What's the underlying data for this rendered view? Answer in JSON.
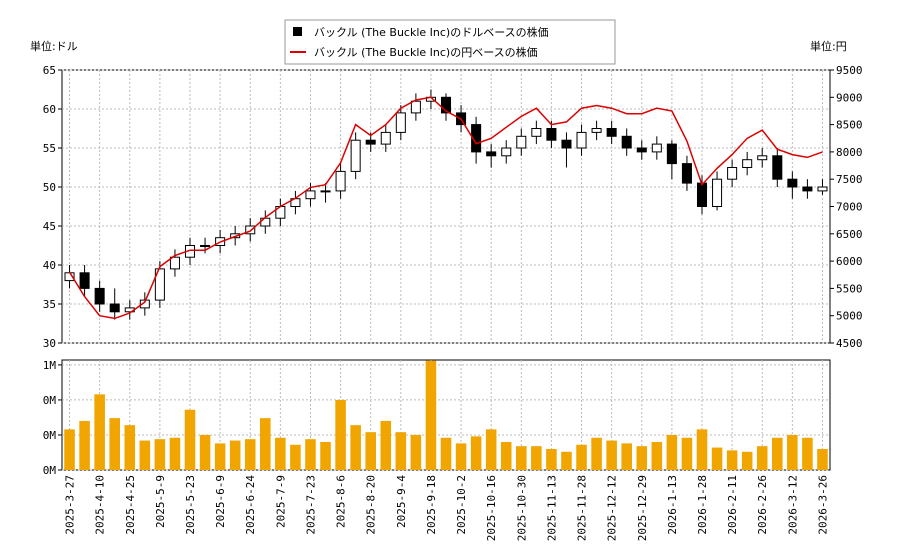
{
  "chart_data": [
    {
      "type": "candlestick",
      "legend_position": "upper center",
      "y_unit_label": "単位:ドル",
      "y2_unit_label": "単位:円",
      "categories": [
        "2025-3-27",
        null,
        "2025-4-10",
        null,
        "2025-4-25",
        null,
        "2025-5-9",
        null,
        "2025-5-23",
        null,
        "2025-6-9",
        null,
        "2025-6-24",
        null,
        "2025-7-9",
        null,
        "2025-7-23",
        null,
        "2025-8-6",
        null,
        "2025-8-20",
        null,
        "2025-9-4",
        null,
        "2025-9-18",
        null,
        "2025-10-2",
        null,
        "2025-10-16",
        null,
        "2025-10-30",
        null,
        "2025-11-13",
        null,
        "2025-11-28",
        null,
        "2025-12-12",
        null,
        "2025-12-29",
        null,
        "2026-1-13",
        null,
        "2026-1-28",
        null,
        "2026-2-11",
        null,
        "2026-2-26",
        null,
        "2026-3-12",
        null,
        "2026-3-26"
      ],
      "ylim": [
        30,
        65
      ],
      "yticks": [
        30,
        35,
        40,
        45,
        50,
        55,
        60,
        65
      ],
      "y2lim": [
        4500,
        9500
      ],
      "y2ticks": [
        4500,
        5000,
        5500,
        6000,
        6500,
        7000,
        7500,
        8000,
        8500,
        9000,
        9500
      ],
      "grid": true,
      "series": [
        {
          "name": "バックル (The Buckle Inc)のドルベースの株価",
          "color": "#000000",
          "up_color": "#ffffff",
          "open": [
            38,
            39,
            37,
            35,
            34,
            34.5,
            35.5,
            39.5,
            41,
            42.5,
            42.5,
            43.5,
            44,
            45,
            46,
            47.5,
            48.5,
            49.5,
            49.5,
            52,
            56,
            55.5,
            57,
            59.5,
            61,
            61.5,
            59.5,
            58,
            54.5,
            54,
            55,
            56.5,
            57.5,
            56,
            55,
            57,
            57.5,
            56.5,
            55,
            54.5,
            55.5,
            53,
            50.5,
            47.5,
            51,
            52.5,
            53.5,
            54,
            51,
            50,
            49.5
          ],
          "high": [
            40,
            40,
            38,
            37,
            35.5,
            36.5,
            40.5,
            42,
            43.5,
            43.5,
            44.5,
            45,
            46,
            47,
            48.5,
            49.5,
            50.5,
            50.5,
            53,
            57,
            57,
            58,
            60.5,
            62,
            62.5,
            62,
            60.5,
            59,
            55.5,
            56,
            57.5,
            58.5,
            58.5,
            57,
            58,
            58.5,
            58.5,
            57.5,
            56,
            56.5,
            56,
            54,
            51.5,
            52,
            53.5,
            54.5,
            55,
            55,
            52,
            51,
            51
          ],
          "low": [
            37,
            36,
            34,
            33,
            33,
            33.5,
            34.5,
            38.5,
            40,
            41.5,
            41.5,
            42.5,
            43,
            44,
            45,
            46.5,
            47.5,
            48,
            48.5,
            51,
            54.5,
            54.5,
            56,
            58.5,
            60,
            58.5,
            57,
            53,
            52.5,
            53,
            54,
            55.5,
            55,
            52.5,
            54,
            56,
            55.5,
            54,
            53.5,
            53.5,
            51,
            49.5,
            46.5,
            47,
            50,
            51.5,
            52.5,
            50,
            48.5,
            48.5,
            49
          ],
          "close": [
            39,
            37,
            35,
            34,
            34.5,
            35.5,
            39.5,
            41,
            42.5,
            42.5,
            43.5,
            44,
            45,
            46,
            47.5,
            48.5,
            49.5,
            49.5,
            52,
            56,
            55.5,
            57,
            59.5,
            61,
            61.5,
            59.5,
            58,
            54.5,
            54,
            55,
            56.5,
            57.5,
            56,
            55,
            57,
            57.5,
            56.5,
            55,
            54.5,
            55.5,
            53,
            50.5,
            47.5,
            51,
            52.5,
            53.5,
            54,
            51,
            50,
            49.5,
            50
          ]
        },
        {
          "name": "バックル (The Buckle Inc)の円ベースの株価",
          "color": "#dd0000",
          "axis": "y2",
          "values": [
            5800,
            5350,
            5000,
            4950,
            5050,
            5250,
            5900,
            6100,
            6200,
            6200,
            6350,
            6450,
            6550,
            6800,
            7000,
            7150,
            7350,
            7400,
            7800,
            8500,
            8300,
            8500,
            8800,
            8950,
            9000,
            8750,
            8600,
            8150,
            8250,
            8450,
            8650,
            8800,
            8500,
            8550,
            8800,
            8850,
            8800,
            8700,
            8700,
            8800,
            8750,
            8200,
            7400,
            7700,
            7950,
            8250,
            8400,
            8050,
            7950,
            7900,
            8000
          ]
        }
      ]
    },
    {
      "type": "bar",
      "color": "#f0a500",
      "ylim": [
        0,
        785000
      ],
      "yticks": [
        {
          "value": 0,
          "label": "0M"
        },
        {
          "value": 250000,
          "label": "0M"
        },
        {
          "value": 500000,
          "label": "0M"
        },
        {
          "value": 750000,
          "label": "1M"
        }
      ],
      "values": [
        290000,
        350000,
        540000,
        370000,
        320000,
        210000,
        220000,
        230000,
        430000,
        250000,
        190000,
        210000,
        220000,
        370000,
        230000,
        180000,
        220000,
        200000,
        500000,
        320000,
        270000,
        350000,
        270000,
        250000,
        780000,
        230000,
        190000,
        240000,
        290000,
        200000,
        170000,
        170000,
        150000,
        130000,
        180000,
        230000,
        210000,
        190000,
        170000,
        200000,
        250000,
        230000,
        290000,
        160000,
        140000,
        130000,
        170000,
        230000,
        250000,
        230000,
        150000
      ]
    }
  ]
}
